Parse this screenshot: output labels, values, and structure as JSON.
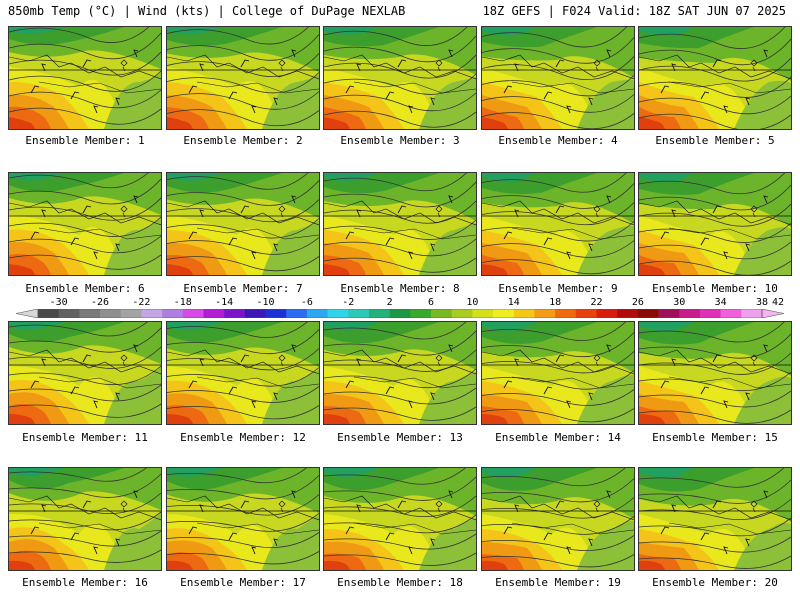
{
  "header": {
    "left": "850mb Temp (°C) | Wind (kts) | College of DuPage NEXLAB",
    "right": "18Z GEFS | F024 Valid: 18Z SAT JUN 07 2025"
  },
  "members": [
    {
      "label": "Ensemble Member: 1"
    },
    {
      "label": "Ensemble Member: 2"
    },
    {
      "label": "Ensemble Member: 3"
    },
    {
      "label": "Ensemble Member: 4"
    },
    {
      "label": "Ensemble Member: 5"
    },
    {
      "label": "Ensemble Member: 6"
    },
    {
      "label": "Ensemble Member: 7"
    },
    {
      "label": "Ensemble Member: 8"
    },
    {
      "label": "Ensemble Member: 9"
    },
    {
      "label": "Ensemble Member: 10"
    },
    {
      "label": "Ensemble Member: 11"
    },
    {
      "label": "Ensemble Member: 12"
    },
    {
      "label": "Ensemble Member: 13"
    },
    {
      "label": "Ensemble Member: 14"
    },
    {
      "label": "Ensemble Member: 15"
    },
    {
      "label": "Ensemble Member: 16"
    },
    {
      "label": "Ensemble Member: 17"
    },
    {
      "label": "Ensemble Member: 18"
    },
    {
      "label": "Ensemble Member: 19"
    },
    {
      "label": "Ensemble Member: 20"
    }
  ],
  "colorscale": {
    "labels": [
      "-30",
      "-26",
      "-22",
      "-18",
      "-14",
      "-10",
      "-6",
      "-2",
      "2",
      "6",
      "10",
      "14",
      "18",
      "22",
      "26",
      "30",
      "34",
      "38",
      "42"
    ],
    "colors": [
      "#4a4a4a",
      "#626262",
      "#7a7a7a",
      "#8f8f8f",
      "#a3a3a3",
      "#c4a6e4",
      "#b07ee0",
      "#d84ae8",
      "#b41cd4",
      "#7a16c8",
      "#3a18b8",
      "#2030d8",
      "#2c6cf0",
      "#2ca8f0",
      "#30d4e8",
      "#2cc8b8",
      "#22b27a",
      "#1a9844",
      "#3aa82a",
      "#7ab824",
      "#a8cc20",
      "#d4e01c",
      "#f0ee20",
      "#f4c818",
      "#f49c14",
      "#f06a10",
      "#e8420c",
      "#d81c0c",
      "#b00c0c",
      "#8a0a0a",
      "#a0105a",
      "#c81c8c",
      "#e030b4",
      "#f060d8",
      "#f0a0ec"
    ]
  }
}
